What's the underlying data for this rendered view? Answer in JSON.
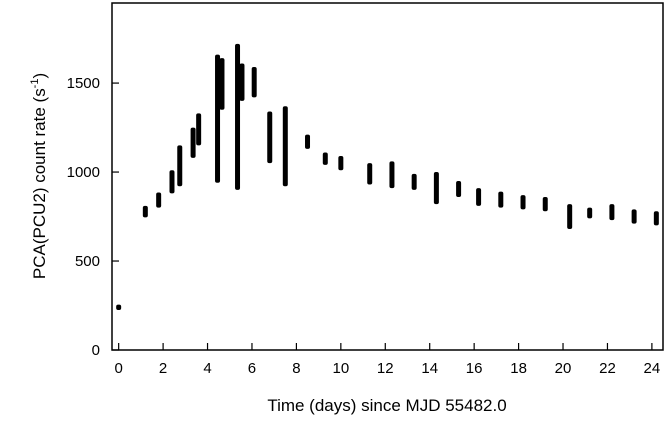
{
  "chart_data": {
    "type": "scatter",
    "xlabel": "Time (days) since MJD 55482.0",
    "ylabel_main": "PCA(PCU2) count rate (s",
    "ylabel_sup": "-1",
    "ylabel_close": ")",
    "xlim": [
      -0.3,
      24.5
    ],
    "ylim": [
      0,
      1950
    ],
    "xticks": [
      0,
      2,
      4,
      6,
      8,
      10,
      12,
      14,
      16,
      18,
      20,
      22,
      24
    ],
    "xtick_labels": [
      "0",
      "2",
      "4",
      "6",
      "8",
      "10",
      "12",
      "14",
      "16",
      "18",
      "20",
      "22",
      "24"
    ],
    "yticks": [
      0,
      500,
      1000,
      1500
    ],
    "ytick_labels": [
      "0",
      "500",
      "1000",
      "1500"
    ],
    "grid": false,
    "marker_color": "#000000",
    "series": [
      {
        "points": [
          {
            "x": 0.0,
            "ymin": 225,
            "ymax": 255
          },
          {
            "x": 1.2,
            "ymin": 745,
            "ymax": 810
          },
          {
            "x": 1.8,
            "ymin": 800,
            "ymax": 885
          },
          {
            "x": 2.4,
            "ymin": 880,
            "ymax": 1010
          },
          {
            "x": 2.75,
            "ymin": 920,
            "ymax": 1150
          },
          {
            "x": 3.35,
            "ymin": 1080,
            "ymax": 1250
          },
          {
            "x": 3.6,
            "ymin": 1150,
            "ymax": 1330
          },
          {
            "x": 4.45,
            "ymin": 940,
            "ymax": 1660
          },
          {
            "x": 4.65,
            "ymin": 1350,
            "ymax": 1640
          },
          {
            "x": 5.35,
            "ymin": 900,
            "ymax": 1720
          },
          {
            "x": 5.55,
            "ymin": 1400,
            "ymax": 1610
          },
          {
            "x": 6.1,
            "ymin": 1420,
            "ymax": 1590
          },
          {
            "x": 6.8,
            "ymin": 1050,
            "ymax": 1340
          },
          {
            "x": 7.5,
            "ymin": 920,
            "ymax": 1370
          },
          {
            "x": 8.5,
            "ymin": 1130,
            "ymax": 1210
          },
          {
            "x": 9.3,
            "ymin": 1040,
            "ymax": 1110
          },
          {
            "x": 10.0,
            "ymin": 1010,
            "ymax": 1090
          },
          {
            "x": 11.3,
            "ymin": 930,
            "ymax": 1050
          },
          {
            "x": 12.3,
            "ymin": 910,
            "ymax": 1060
          },
          {
            "x": 13.3,
            "ymin": 900,
            "ymax": 990
          },
          {
            "x": 14.3,
            "ymin": 820,
            "ymax": 1000
          },
          {
            "x": 15.3,
            "ymin": 860,
            "ymax": 950
          },
          {
            "x": 16.2,
            "ymin": 810,
            "ymax": 910
          },
          {
            "x": 17.2,
            "ymin": 800,
            "ymax": 890
          },
          {
            "x": 18.2,
            "ymin": 790,
            "ymax": 870
          },
          {
            "x": 19.2,
            "ymin": 780,
            "ymax": 860
          },
          {
            "x": 20.3,
            "ymin": 680,
            "ymax": 820
          },
          {
            "x": 21.2,
            "ymin": 740,
            "ymax": 800
          },
          {
            "x": 22.2,
            "ymin": 730,
            "ymax": 820
          },
          {
            "x": 23.2,
            "ymin": 710,
            "ymax": 790
          },
          {
            "x": 24.2,
            "ymin": 700,
            "ymax": 780
          }
        ]
      }
    ]
  }
}
